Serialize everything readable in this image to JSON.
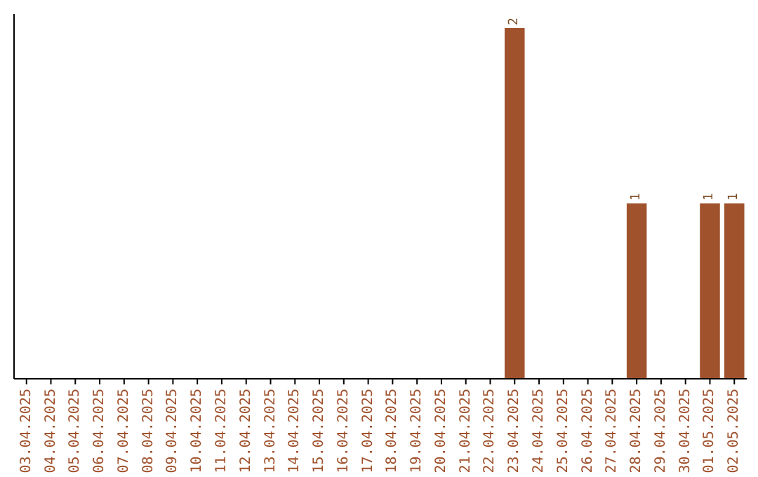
{
  "chart_data": {
    "type": "bar",
    "categories": [
      "03.04.2025",
      "04.04.2025",
      "05.04.2025",
      "06.04.2025",
      "07.04.2025",
      "08.04.2025",
      "09.04.2025",
      "10.04.2025",
      "11.04.2025",
      "12.04.2025",
      "13.04.2025",
      "14.04.2025",
      "15.04.2025",
      "16.04.2025",
      "17.04.2025",
      "18.04.2025",
      "19.04.2025",
      "20.04.2025",
      "21.04.2025",
      "22.04.2025",
      "23.04.2025",
      "24.04.2025",
      "25.04.2025",
      "26.04.2025",
      "27.04.2025",
      "28.04.2025",
      "29.04.2025",
      "30.04.2025",
      "01.05.2025",
      "02.05.2025"
    ],
    "values": [
      null,
      null,
      null,
      null,
      null,
      null,
      null,
      null,
      null,
      null,
      null,
      null,
      null,
      null,
      null,
      null,
      null,
      null,
      null,
      null,
      2,
      null,
      null,
      null,
      null,
      1,
      null,
      null,
      1,
      1
    ],
    "color": "#a0522d",
    "data_labels": true
  }
}
